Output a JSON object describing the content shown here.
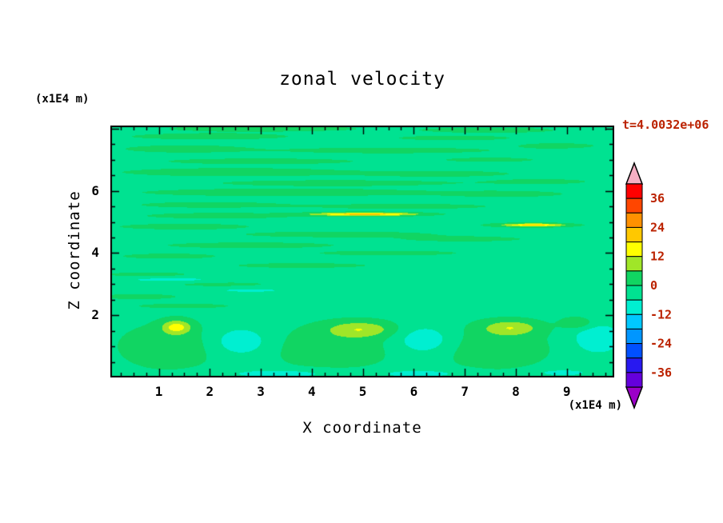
{
  "title": "zonal velocity",
  "time_label": "t=4.0032e+06",
  "axes": {
    "x_label": "X coordinate",
    "y_label": "Z coordinate",
    "x_unit": "(x1E4 m)",
    "y_unit": "(x1E4 m)",
    "x_ticks": [
      1,
      2,
      3,
      4,
      5,
      6,
      7,
      8,
      9
    ],
    "y_ticks": [
      2,
      4,
      6
    ]
  },
  "colors": {
    "label_color": "#bb2200",
    "axis_color": "#000000",
    "background": "#ffffff"
  },
  "chart_data": {
    "type": "contour",
    "title": "zonal velocity",
    "xlabel": "X coordinate (x1E4 m)",
    "ylabel": "Z coordinate (x1E4 m)",
    "time_annotation": "t=4.0032e+06",
    "x_range": [
      0.05,
      9.93
    ],
    "z_range": [
      0,
      8.1
    ],
    "contour_interval": 6,
    "levels_min": -42,
    "colorbar_labels": [
      36,
      24,
      12,
      0,
      -12,
      -24,
      -36
    ],
    "band_colors": [
      "#6400dc",
      "#2819f0",
      "#0050ff",
      "#0096ff",
      "#00c8ff",
      "#00efd1",
      "#00e291",
      "#11d562",
      "#a0e628",
      "#ffff00",
      "#ffc800",
      "#ff9100",
      "#ff4600",
      "#ff0000"
    ],
    "under_color": "#9b00c8",
    "over_color": "#f5afc3",
    "field_description": "zonal velocity field, mostly between -6 and 6 m/s with thin horizontal shear streaks aloft, two thin positive jets (~20) mid-level, and alternating positive/negative cells near the surface",
    "field": {
      "base": -2,
      "blob_fields": [
        "x",
        "z",
        "sx",
        "sz",
        "amplitude"
      ],
      "blobs": [
        [
          3.0,
          8.0,
          2.0,
          0.1,
          4.5
        ],
        [
          7.5,
          7.95,
          1.5,
          0.1,
          4.0
        ],
        [
          2.0,
          7.75,
          1.6,
          0.1,
          5.0
        ],
        [
          6.8,
          7.7,
          1.2,
          0.08,
          4.5
        ],
        [
          1.5,
          7.35,
          1.2,
          0.12,
          5.0
        ],
        [
          5.5,
          7.3,
          2.2,
          0.1,
          4.5
        ],
        [
          8.8,
          7.45,
          0.8,
          0.09,
          4.5
        ],
        [
          3.0,
          6.95,
          2.0,
          0.1,
          4.5
        ],
        [
          7.5,
          7.0,
          1.0,
          0.08,
          4.0
        ],
        [
          2.5,
          6.6,
          2.2,
          0.13,
          5.5
        ],
        [
          6.5,
          6.55,
          1.5,
          0.1,
          4.5
        ],
        [
          4.5,
          6.25,
          2.5,
          0.1,
          4.5
        ],
        [
          8.5,
          6.3,
          1.0,
          0.09,
          4.0
        ],
        [
          3.5,
          5.95,
          2.8,
          0.12,
          5.5
        ],
        [
          7.8,
          5.9,
          1.2,
          0.1,
          4.5
        ],
        [
          2.0,
          5.55,
          1.5,
          0.1,
          4.5
        ],
        [
          5.8,
          5.5,
          1.8,
          0.09,
          4.5
        ],
        [
          5.05,
          5.25,
          1.0,
          0.07,
          5.0
        ],
        [
          5.05,
          5.25,
          1.0,
          0.05,
          19.0
        ],
        [
          2.2,
          5.2,
          1.6,
          0.1,
          4.5
        ],
        [
          8.3,
          4.9,
          0.9,
          0.08,
          5.0
        ],
        [
          8.35,
          4.9,
          0.55,
          0.045,
          18.0
        ],
        [
          1.5,
          4.85,
          1.4,
          0.1,
          4.5
        ],
        [
          4.5,
          4.6,
          2.0,
          0.1,
          4.5
        ],
        [
          7.0,
          4.45,
          1.3,
          0.09,
          4.0
        ],
        [
          2.8,
          4.25,
          1.8,
          0.1,
          4.5
        ],
        [
          5.5,
          4.0,
          1.6,
          0.09,
          4.0
        ],
        [
          1.2,
          3.9,
          1.0,
          0.09,
          4.5
        ],
        [
          3.8,
          3.6,
          1.5,
          0.09,
          4.0
        ],
        [
          0.8,
          3.3,
          0.9,
          0.09,
          4.5
        ],
        [
          1.2,
          3.15,
          1.2,
          0.1,
          -5.5
        ],
        [
          2.2,
          3.0,
          1.0,
          0.08,
          4.0
        ],
        [
          2.8,
          2.8,
          1.0,
          0.09,
          -5.0
        ],
        [
          0.6,
          2.6,
          0.8,
          0.09,
          4.5
        ],
        [
          1.5,
          2.3,
          1.0,
          0.08,
          4.0
        ],
        [
          1.2,
          1.0,
          1.0,
          0.75,
          5.5
        ],
        [
          4.4,
          0.95,
          1.2,
          0.7,
          5.5
        ],
        [
          7.6,
          0.95,
          1.1,
          0.7,
          5.5
        ],
        [
          2.6,
          1.15,
          0.55,
          0.45,
          -9.5
        ],
        [
          6.2,
          1.2,
          0.55,
          0.45,
          -9.5
        ],
        [
          9.6,
          1.25,
          0.5,
          0.5,
          -9.0
        ],
        [
          1.35,
          1.62,
          0.28,
          0.22,
          15.0
        ],
        [
          4.95,
          1.55,
          0.65,
          0.26,
          12.0
        ],
        [
          7.9,
          1.6,
          0.55,
          0.24,
          12.0
        ],
        [
          9.2,
          1.75,
          0.3,
          0.18,
          9.0
        ],
        [
          3.4,
          0.12,
          1.1,
          0.14,
          -7.5
        ],
        [
          6.1,
          0.12,
          0.9,
          0.13,
          -7.0
        ],
        [
          8.9,
          0.15,
          0.6,
          0.12,
          -6.5
        ]
      ]
    }
  }
}
